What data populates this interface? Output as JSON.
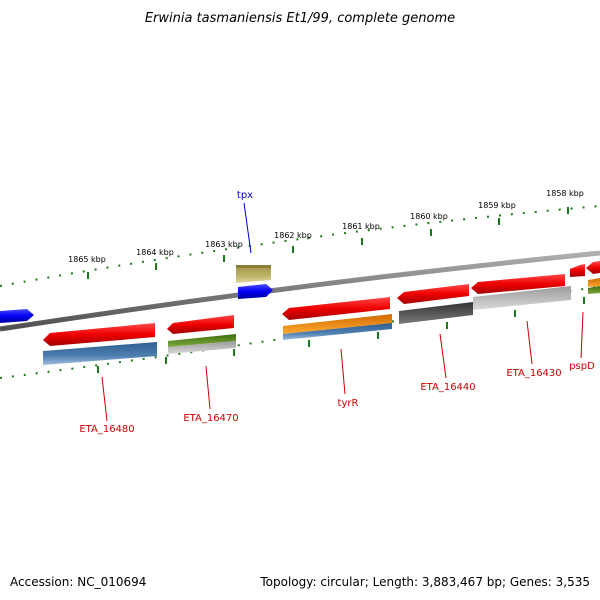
{
  "title": "Erwinia tasmaniensis Et1/99, complete genome",
  "footer": {
    "accession": "Accession: NC_010694",
    "summary": "Topology: circular; Length: 3,883,467 bp; Genes: 3,535"
  },
  "ruler_ticks": [
    "1865 kbp",
    "1864 kbp",
    "1863 kbp",
    "1862 kbp",
    "1861 kbp",
    "1860 kbp",
    "1859 kbp",
    "1858 kbp"
  ],
  "gene_labels": [
    {
      "text": "tpx",
      "color": "#0000cc"
    },
    {
      "text": "ETA_16480",
      "color": "#cc0000"
    },
    {
      "text": "ETA_16470",
      "color": "#cc0000"
    },
    {
      "text": "tyrR",
      "color": "#cc0000"
    },
    {
      "text": "ETA_16440",
      "color": "#cc0000"
    },
    {
      "text": "ETA_16430",
      "color": "#cc0000"
    },
    {
      "text": "pspD",
      "color": "#cc0000"
    }
  ],
  "colors": {
    "backbone": "#808080",
    "ruler": "#1a7a1a",
    "gene_red": "#ee0000",
    "gene_blue": "#0000ee",
    "feature_steel": "#4f7fb0",
    "feature_olive": "#bfb36a",
    "feature_green": "#5e8c1e",
    "feature_orange": "#f28c00",
    "feature_gray": "#bdbdbd",
    "feature_dark": "#555555"
  }
}
